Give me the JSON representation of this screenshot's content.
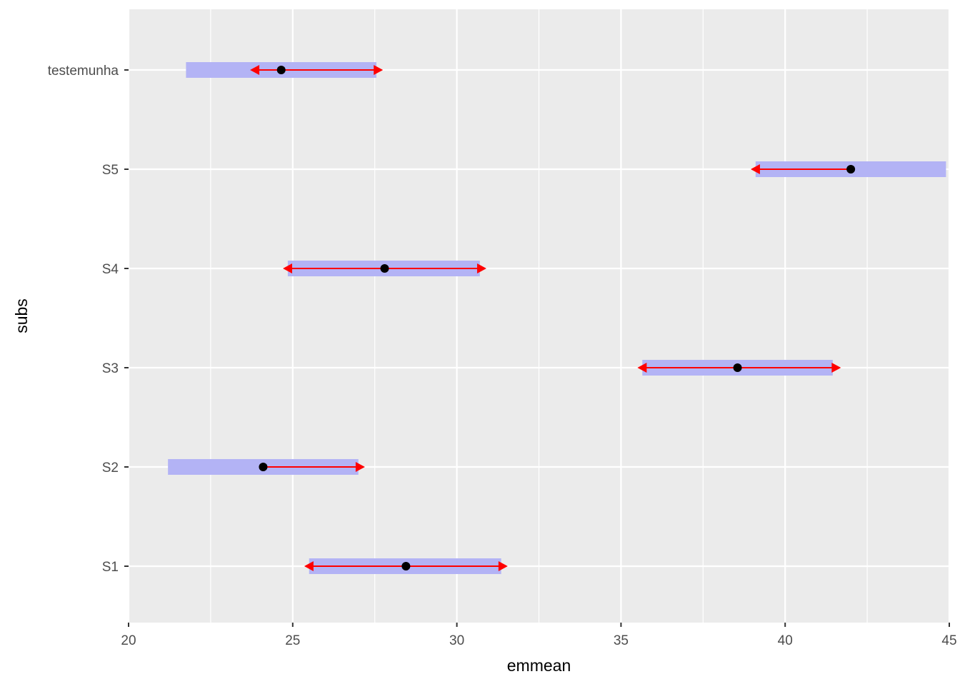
{
  "chart_data": {
    "type": "scatter",
    "xlabel": "emmean",
    "ylabel": "subs",
    "xlim": [
      20,
      45
    ],
    "x_ticks": [
      "20",
      "25",
      "30",
      "35",
      "40",
      "45"
    ],
    "categories": [
      "S1",
      "S2",
      "S3",
      "S4",
      "S5",
      "testemunha"
    ],
    "series": [
      {
        "emmean": 28.45,
        "lower_CL": 25.5,
        "upper_CL": 31.35,
        "arrow_left": 25.35,
        "arrow_right": 31.55
      },
      {
        "emmean": 24.1,
        "lower_CL": 21.2,
        "upper_CL": 27.0,
        "arrow_left": null,
        "arrow_right": 27.2
      },
      {
        "emmean": 38.55,
        "lower_CL": 35.65,
        "upper_CL": 41.45,
        "arrow_left": 35.5,
        "arrow_right": 41.7
      },
      {
        "emmean": 27.8,
        "lower_CL": 24.85,
        "upper_CL": 30.7,
        "arrow_left": 24.7,
        "arrow_right": 30.9
      },
      {
        "emmean": 42.0,
        "lower_CL": 39.1,
        "upper_CL": 44.9,
        "arrow_left": 38.95,
        "arrow_right": null
      },
      {
        "emmean": 24.65,
        "lower_CL": 21.75,
        "upper_CL": 27.55,
        "arrow_left": 23.7,
        "arrow_right": 27.75
      }
    ],
    "grid": true,
    "colors": {
      "panel_bg": "#ebebeb",
      "grid_major": "#ffffff",
      "ci_bar": "#b3b3f5",
      "comparison_arrow": "#ff0000",
      "point": "#000000",
      "axis_text": "#4d4d4d",
      "axis_title": "#000000"
    }
  }
}
